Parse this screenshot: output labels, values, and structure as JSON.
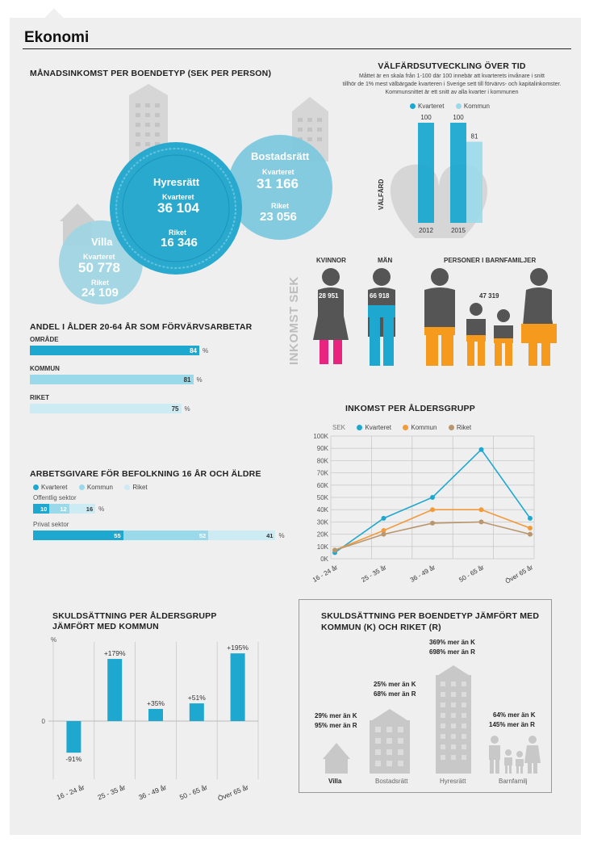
{
  "header": {
    "title": "Ekonomi"
  },
  "colors": {
    "kvarteret": "#1ea8d0",
    "kommun": "#9ad9e9",
    "riket": "#cdebf3",
    "kommun_line": "#f39a3a",
    "riket_line": "#b9966e",
    "pink": "#e8247e",
    "orange": "#f59a1c",
    "body": "#555555"
  },
  "income_by_housing": {
    "title": "MÅNADSINKOMST PER BOENDETYP (SEK PER PERSON)",
    "hyresratt": {
      "name": "Hyresrätt",
      "k_label": "Kvarteret",
      "k_value": "36 104",
      "r_label": "Riket",
      "r_value": "16 346"
    },
    "bostadsratt": {
      "name": "Bostadsrätt",
      "k_label": "Kvarteret",
      "k_value": "31 166",
      "r_label": "Riket",
      "r_value": "23 056"
    },
    "villa": {
      "name": "Villa",
      "k_label": "Kvarteret",
      "k_value": "50 778",
      "r_label": "Riket",
      "r_value": "24 109"
    }
  },
  "welfare": {
    "title": "VÄLFÄRDSUTVECKLING ÖVER TID",
    "desc1": "Måttet är en skala från 1-100 där 100 innebär att kvarterets invånare i snitt",
    "desc2": "tillhör de 1% mest välbärgade kvarteren i Sverige sett till förvärvs- och kapitalinkomster.",
    "desc3": "Kommunsnittet är ett snitt av alla kvarter i kommunen",
    "legend": [
      "Kvarteret",
      "Kommun"
    ],
    "ylabel": "VÄLFÄRD",
    "chart_data": {
      "type": "bar",
      "categories": [
        "2012",
        "2015"
      ],
      "series": [
        {
          "name": "Kvarteret",
          "values": [
            100,
            100
          ]
        },
        {
          "name": "Kommun",
          "values": [
            null,
            81
          ]
        }
      ],
      "data_labels": [
        "100",
        "100",
        "81"
      ],
      "ylim": [
        0,
        100
      ]
    }
  },
  "income_gender": {
    "side_label": "INKOMST SEK",
    "kvinnor": {
      "label": "KVINNOR",
      "value": "28 951"
    },
    "man": {
      "label": "MÄN",
      "value": "66 918"
    },
    "family": {
      "label": "PERSONER I BARNFAMILJER",
      "value": "47 319"
    }
  },
  "employment": {
    "title": "ANDEL I ÅLDER 20-64 ÅR SOM FÖRVÄRVSARBETAR",
    "unit": "%",
    "chart_data": {
      "type": "bar",
      "categories": [
        "OMRÅDE",
        "KOMMUN",
        "RIKET"
      ],
      "values": [
        84,
        81,
        75
      ],
      "xlim": [
        0,
        100
      ]
    }
  },
  "employers": {
    "title": "ARBETSGIVARE FÖR BEFOLKNING 16 ÅR OCH ÄLDRE",
    "legend": [
      "Kvarteret",
      "Kommun",
      "Riket"
    ],
    "unit": "%",
    "chart_data": {
      "type": "bar",
      "categories": [
        "Offentlig sektor",
        "Privat sektor"
      ],
      "series": [
        {
          "name": "Kvarteret",
          "values": [
            10,
            55
          ]
        },
        {
          "name": "Kommun",
          "values": [
            12,
            52
          ]
        },
        {
          "name": "Riket",
          "values": [
            16,
            41
          ]
        }
      ]
    }
  },
  "income_age": {
    "title": "INKOMST PER ÅLDERSGRUPP",
    "yunit": "SEK",
    "legend": [
      "Kvarteret",
      "Kommun",
      "Riket"
    ],
    "chart_data": {
      "type": "line",
      "categories": [
        "16 - 24 år",
        "25 - 35 år",
        "36 - 49 år",
        "50 - 65 år",
        "Över 65 år"
      ],
      "yticks": [
        "0K",
        "10K",
        "20K",
        "30K",
        "40K",
        "50K",
        "60K",
        "70K",
        "80K",
        "90K",
        "100K"
      ],
      "ylim": [
        0,
        100000
      ],
      "series": [
        {
          "name": "Kvarteret",
          "values": [
            5000,
            33000,
            50000,
            89000,
            33000
          ]
        },
        {
          "name": "Kommun",
          "values": [
            7000,
            23000,
            40000,
            40000,
            25000
          ]
        },
        {
          "name": "Riket",
          "values": [
            7000,
            20000,
            29000,
            30000,
            20000
          ]
        }
      ]
    }
  },
  "debt_age": {
    "title1": "SKULDSÄTTNING PER ÅLDERSGRUPP",
    "title2": "JÄMFÖRT MED KOMMUN",
    "yunit": "%",
    "zero": "0",
    "chart_data": {
      "type": "bar",
      "categories": [
        "16 - 24 år",
        "25 - 35 år",
        "36 - 49 år",
        "50 - 65 år",
        "Över 65 år"
      ],
      "values": [
        -91,
        179,
        35,
        51,
        195
      ],
      "data_labels": [
        "-91%",
        "+179%",
        "+35%",
        "+51%",
        "+195%"
      ]
    }
  },
  "debt_housing": {
    "title1": "SKULDSÄTTNING PER BOENDETYP JÄMFÖRT MED",
    "title2": "KOMMUN (K) OCH RIKET (R)",
    "items": [
      {
        "name": "Villa",
        "k": "29% mer än K",
        "r": "95% mer än R"
      },
      {
        "name": "Bostadsrätt",
        "k": "25% mer än K",
        "r": "68% mer än R"
      },
      {
        "name": "Hyresrätt",
        "k": "369% mer än K",
        "r": "698% mer än R"
      },
      {
        "name": "Barnfamilj",
        "k": "64% mer än K",
        "r": "145% mer än R"
      }
    ]
  }
}
